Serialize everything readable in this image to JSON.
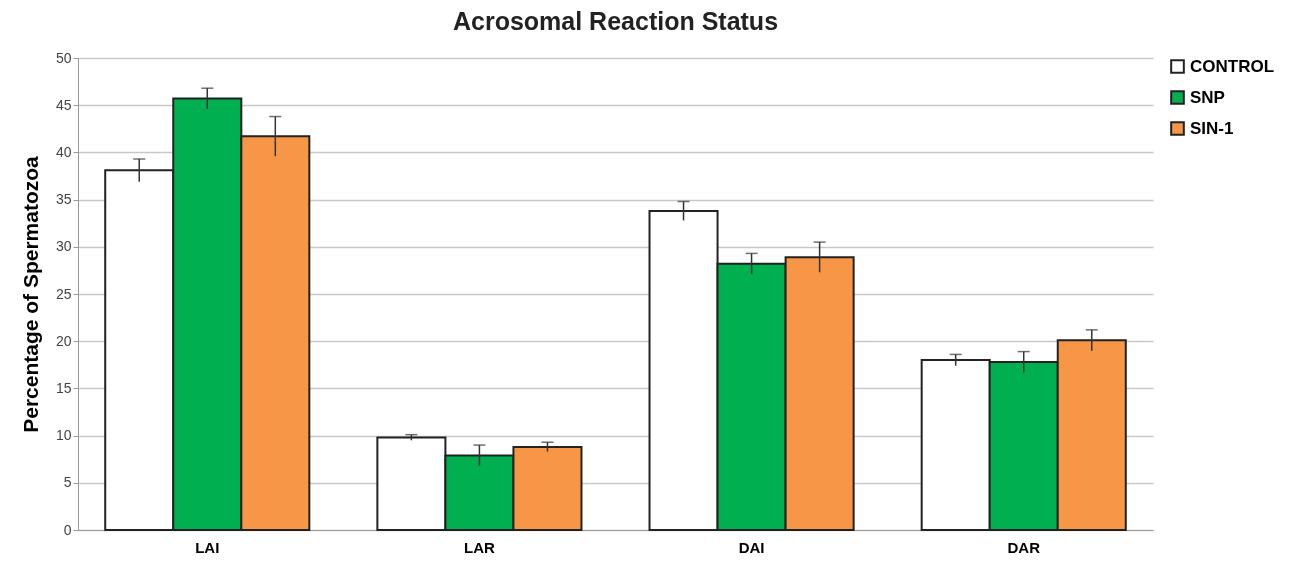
{
  "chart_data": {
    "type": "bar",
    "title": "Acrosomal Reaction Status",
    "ylabel": "Percentage of Spermatozoa",
    "categories": [
      "LAI",
      "LAR",
      "DAI",
      "DAR"
    ],
    "series": [
      {
        "name": "CONTROL",
        "color": "#ffffff",
        "values": [
          38.1,
          9.8,
          33.8,
          18.0
        ],
        "errors": [
          1.2,
          0.3,
          1.0,
          0.6
        ]
      },
      {
        "name": "SNP",
        "color": "#00b050",
        "values": [
          45.7,
          7.9,
          28.2,
          17.8
        ],
        "errors": [
          1.1,
          1.1,
          1.1,
          1.1
        ]
      },
      {
        "name": "SIN-1",
        "color": "#f79646",
        "values": [
          41.7,
          8.8,
          28.9,
          20.1
        ],
        "errors": [
          2.1,
          0.5,
          1.6,
          1.1
        ]
      }
    ],
    "ylim": [
      0,
      50
    ],
    "yticks": [
      0,
      5,
      10,
      15,
      20,
      25,
      30,
      35,
      40,
      45,
      50
    ],
    "grid": "y",
    "legend": "right"
  }
}
